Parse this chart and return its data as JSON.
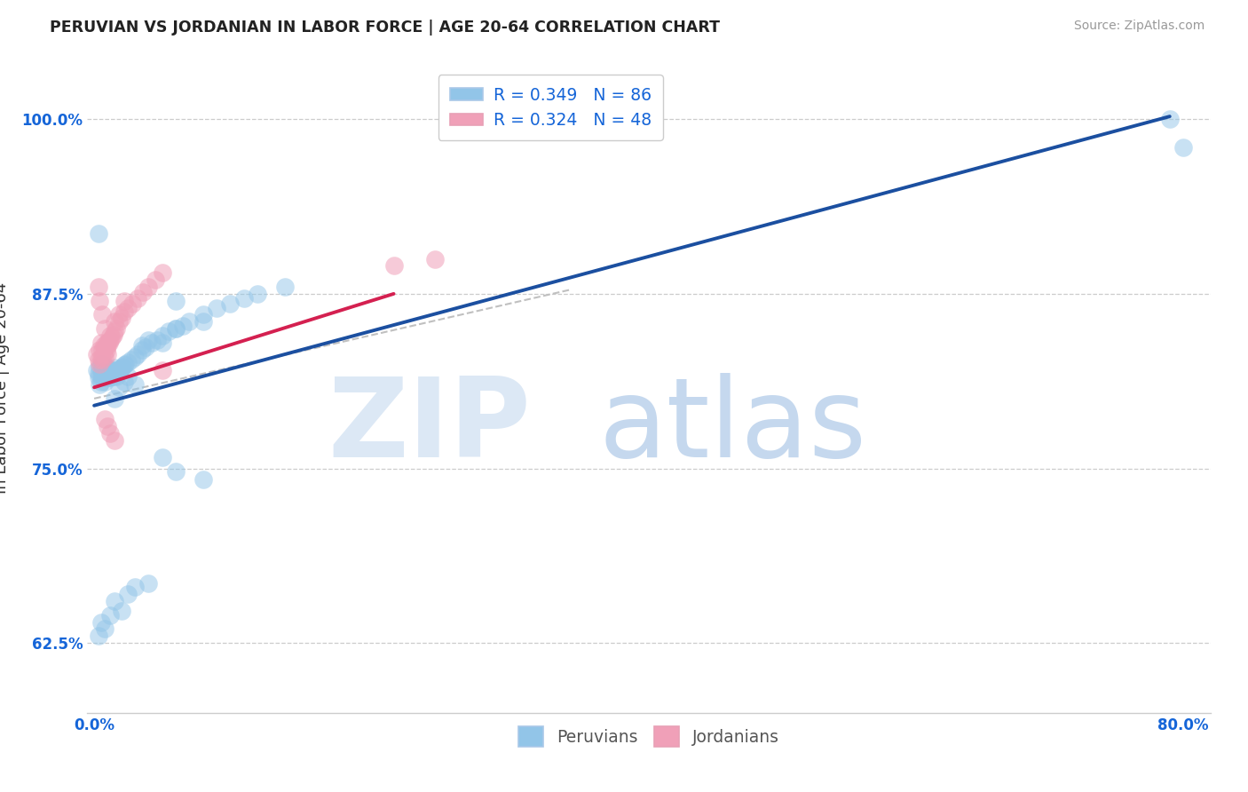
{
  "title": "PERUVIAN VS JORDANIAN IN LABOR FORCE | AGE 20-64 CORRELATION CHART",
  "source": "Source: ZipAtlas.com",
  "ylabel": "In Labor Force | Age 20-64",
  "xlim": [
    -0.005,
    0.82
  ],
  "ylim": [
    0.575,
    1.04
  ],
  "yticks": [
    0.625,
    0.75,
    0.875,
    1.0
  ],
  "ytick_labels": [
    "62.5%",
    "75.0%",
    "87.5%",
    "100.0%"
  ],
  "xticks": [
    0.0,
    0.1,
    0.2,
    0.3,
    0.4,
    0.5,
    0.6,
    0.7,
    0.8
  ],
  "xtick_labels": [
    "0.0%",
    "",
    "",
    "",
    "",
    "",
    "",
    "",
    "80.0%"
  ],
  "legend_r1": "R = 0.349",
  "legend_n1": "N = 86",
  "legend_r2": "R = 0.324",
  "legend_n2": "N = 48",
  "blue_color": "#92C5E8",
  "pink_color": "#F0A0B8",
  "blue_line_color": "#1B4FA0",
  "pink_line_color": "#D42050",
  "gray_dash_color": "#C0C0C0",
  "legend_text_color": "#1565D8",
  "tick_color": "#1565D8",
  "blue_line_x": [
    0.0,
    0.79
  ],
  "blue_line_y": [
    0.795,
    1.002
  ],
  "pink_line_x": [
    0.0,
    0.22
  ],
  "pink_line_y": [
    0.808,
    0.875
  ],
  "gray_line_x": [
    0.0,
    0.35
  ],
  "gray_line_y": [
    0.8,
    0.878
  ],
  "peru_x": [
    0.002,
    0.003,
    0.003,
    0.004,
    0.004,
    0.005,
    0.005,
    0.005,
    0.006,
    0.006,
    0.006,
    0.007,
    0.007,
    0.007,
    0.008,
    0.008,
    0.008,
    0.009,
    0.009,
    0.01,
    0.01,
    0.01,
    0.011,
    0.011,
    0.012,
    0.012,
    0.013,
    0.013,
    0.014,
    0.014,
    0.015,
    0.015,
    0.016,
    0.016,
    0.017,
    0.018,
    0.019,
    0.02,
    0.021,
    0.022,
    0.023,
    0.025,
    0.027,
    0.03,
    0.032,
    0.035,
    0.038,
    0.042,
    0.046,
    0.05,
    0.055,
    0.06,
    0.065,
    0.07,
    0.08,
    0.09,
    0.1,
    0.11,
    0.12,
    0.14,
    0.015,
    0.018,
    0.022,
    0.025,
    0.03,
    0.035,
    0.04,
    0.05,
    0.06,
    0.08,
    0.003,
    0.005,
    0.008,
    0.012,
    0.015,
    0.02,
    0.025,
    0.03,
    0.04,
    0.05,
    0.06,
    0.08,
    0.003,
    0.06,
    0.79,
    0.8
  ],
  "peru_y": [
    0.82,
    0.815,
    0.818,
    0.822,
    0.81,
    0.825,
    0.816,
    0.812,
    0.82,
    0.823,
    0.818,
    0.815,
    0.82,
    0.824,
    0.818,
    0.816,
    0.812,
    0.82,
    0.815,
    0.822,
    0.818,
    0.815,
    0.82,
    0.816,
    0.818,
    0.815,
    0.82,
    0.817,
    0.819,
    0.816,
    0.822,
    0.818,
    0.82,
    0.816,
    0.819,
    0.821,
    0.82,
    0.822,
    0.823,
    0.824,
    0.825,
    0.826,
    0.828,
    0.83,
    0.832,
    0.835,
    0.837,
    0.84,
    0.842,
    0.845,
    0.848,
    0.85,
    0.852,
    0.855,
    0.86,
    0.865,
    0.868,
    0.872,
    0.875,
    0.88,
    0.8,
    0.808,
    0.812,
    0.816,
    0.81,
    0.838,
    0.842,
    0.84,
    0.85,
    0.855,
    0.63,
    0.64,
    0.635,
    0.645,
    0.655,
    0.648,
    0.66,
    0.665,
    0.668,
    0.758,
    0.748,
    0.742,
    0.918,
    0.87,
    1.0,
    0.98
  ],
  "jordan_x": [
    0.002,
    0.003,
    0.004,
    0.004,
    0.005,
    0.005,
    0.006,
    0.006,
    0.007,
    0.007,
    0.008,
    0.008,
    0.009,
    0.009,
    0.01,
    0.01,
    0.011,
    0.012,
    0.013,
    0.014,
    0.015,
    0.016,
    0.018,
    0.02,
    0.022,
    0.025,
    0.028,
    0.032,
    0.036,
    0.04,
    0.045,
    0.05,
    0.003,
    0.004,
    0.006,
    0.008,
    0.01,
    0.012,
    0.015,
    0.018,
    0.022,
    0.01,
    0.012,
    0.015,
    0.008,
    0.22,
    0.25,
    0.05
  ],
  "jordan_y": [
    0.832,
    0.828,
    0.835,
    0.825,
    0.83,
    0.84,
    0.835,
    0.828,
    0.838,
    0.832,
    0.836,
    0.83,
    0.84,
    0.835,
    0.838,
    0.832,
    0.84,
    0.842,
    0.844,
    0.846,
    0.848,
    0.85,
    0.855,
    0.858,
    0.862,
    0.865,
    0.868,
    0.872,
    0.876,
    0.88,
    0.885,
    0.89,
    0.88,
    0.87,
    0.86,
    0.85,
    0.84,
    0.845,
    0.855,
    0.86,
    0.87,
    0.78,
    0.775,
    0.77,
    0.785,
    0.895,
    0.9,
    0.82
  ]
}
